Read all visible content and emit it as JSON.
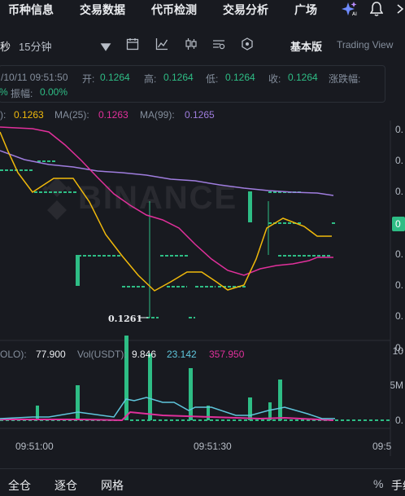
{
  "nav": {
    "items": [
      "币种信息",
      "交易数据",
      "代币检测",
      "交易分析",
      "广场"
    ],
    "ai_icon": "ai-sparkle-icon",
    "bell_icon": "bell-icon"
  },
  "toolbar": {
    "interval_partial": "秒",
    "interval_selected": "15分钟",
    "basic_label": "基本版",
    "tradingview_label": "Trading View"
  },
  "ohlc": {
    "datetime": "/10/11 09:51:50",
    "open_label": "开:",
    "open": "0.1264",
    "high_label": "高:",
    "high": "0.1264",
    "low_label": "低:",
    "low": "0.1264",
    "close_label": "收:",
    "close": "0.1264",
    "change_label": "涨跌幅:",
    "change_partial": "%",
    "amplitude_label": "振幅:",
    "amplitude": "0.00%"
  },
  "ma": {
    "ma7_value": "0.1263",
    "ma25_label": "MA(25):",
    "ma25_value": "0.1263",
    "ma99_label": "MA(99):",
    "ma99_value": "0.1265",
    "color_ma7": "#f0b90b",
    "color_ma25": "#e0309b",
    "color_ma99": "#9f7dde"
  },
  "chart": {
    "min_marker": "0.1261",
    "watermark": "BINANCE",
    "price_axis": [
      "0.",
      "0.",
      "0.",
      "0.",
      "0.",
      "0.",
      "0.",
      "0."
    ],
    "current_price_badge": "0",
    "volume_axis": [
      "10",
      "5M",
      "0."
    ],
    "time_labels": [
      "09:51:00",
      "09:51:30",
      "09:5"
    ],
    "color_up": "#2ebd85",
    "color_down": "#f6465d"
  },
  "volume": {
    "label_partial": "OLO):",
    "value": "77.900",
    "usdt_label": "Vol(USDT):",
    "usdt_value": "9.846",
    "ma5_value": "23.142",
    "ma10_value": "357.950",
    "color_ma5": "#5fc6dc",
    "color_ma10": "#e0309b"
  },
  "bottom": {
    "items": [
      "全仓",
      "逐仓",
      "网格"
    ],
    "right_pct": "%",
    "right_partial": "手续"
  }
}
